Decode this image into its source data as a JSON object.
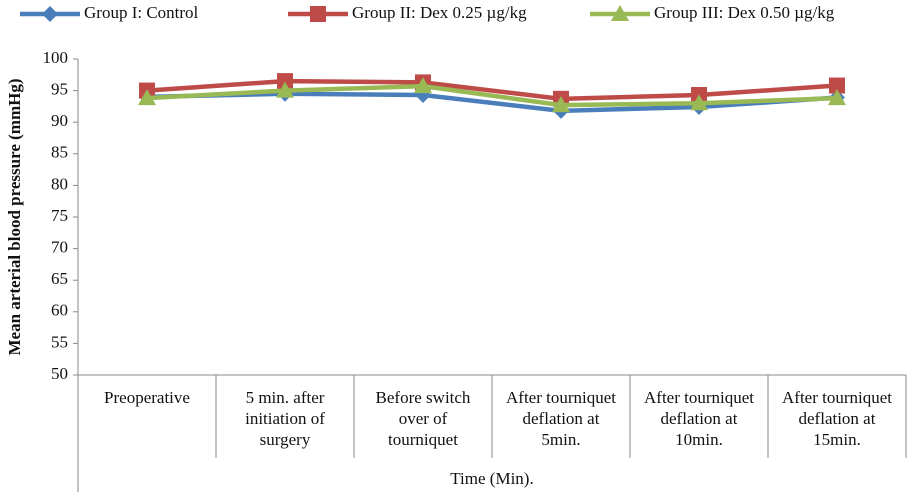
{
  "chart_data": {
    "type": "line",
    "y_label": "Mean arterial blood pressure (mmHg)",
    "x_label": "Time (Min).",
    "categories": [
      "Preoperative",
      "5 min. after\ninitiation of\nsurgery",
      "Before switch\nover of\ntourniquet",
      "After tourniquet\ndeflation at\n5min.",
      "After tourniquet\ndeflation at\n10min.",
      "After tourniquet\ndeflation at\n15min."
    ],
    "series": [
      {
        "name": "Group I: Control",
        "color": "#4a7ebb",
        "marker": "diamond",
        "values": [
          94,
          94.5,
          94.3,
          91.8,
          92.4,
          93.9
        ]
      },
      {
        "name": "Group II: Dex 0.25 µg/kg",
        "color": "#be4b48",
        "marker": "square",
        "values": [
          95,
          96.5,
          96.3,
          93.7,
          94.3,
          95.8
        ]
      },
      {
        "name": "Group III: Dex 0.50 µg/kg",
        "color": "#98b954",
        "marker": "triangle",
        "values": [
          93.8,
          95,
          95.7,
          92.7,
          93,
          93.8
        ]
      }
    ],
    "ylim": [
      50,
      100
    ],
    "yticks": [
      50,
      55,
      60,
      65,
      70,
      75,
      80,
      85,
      90,
      95,
      100
    ]
  }
}
